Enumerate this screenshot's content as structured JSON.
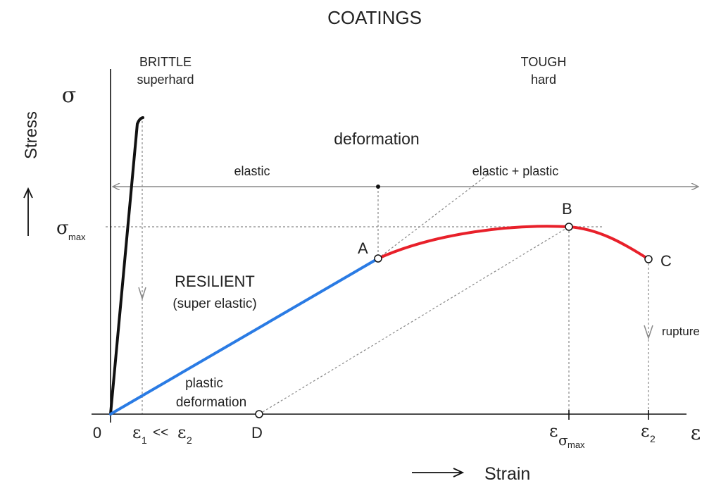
{
  "title": "COATINGS",
  "labels": {
    "brittle": "BRITTLE",
    "superhard": "superhard",
    "tough": "TOUGH",
    "hard": "hard",
    "deformation": "deformation",
    "elastic": "elastic",
    "elastic_plastic": "elastic + plastic",
    "resilient": "RESILIENT",
    "super_elastic": "(super elastic)",
    "plastic": "plastic",
    "plastic_deformation": "deformation",
    "rupture": "rupture",
    "point_a": "A",
    "point_b": "B",
    "point_c": "C",
    "point_d": "D"
  },
  "axes": {
    "y_symbol": "σ",
    "y_label": "Stress",
    "x_symbol": "ε",
    "x_label": "Strain",
    "origin": "0",
    "sigma_max_main": "σ",
    "sigma_max_sub": "max",
    "eps1_main": "ε",
    "eps1_sub": "1",
    "eps_compare": "<<",
    "eps2_main": "ε",
    "eps2_sub": "2",
    "eps_smax_main": "ε",
    "eps_smax_sub1": "σ",
    "eps_smax_sub2": "max",
    "eps2b_main": "ε",
    "eps2b_sub": "2"
  },
  "colors": {
    "brittle_curve": "#111111",
    "resilient_curve": "#2a7be4",
    "tough_curve": "#e8202a",
    "guides": "#888888",
    "axis": "#111111"
  }
}
